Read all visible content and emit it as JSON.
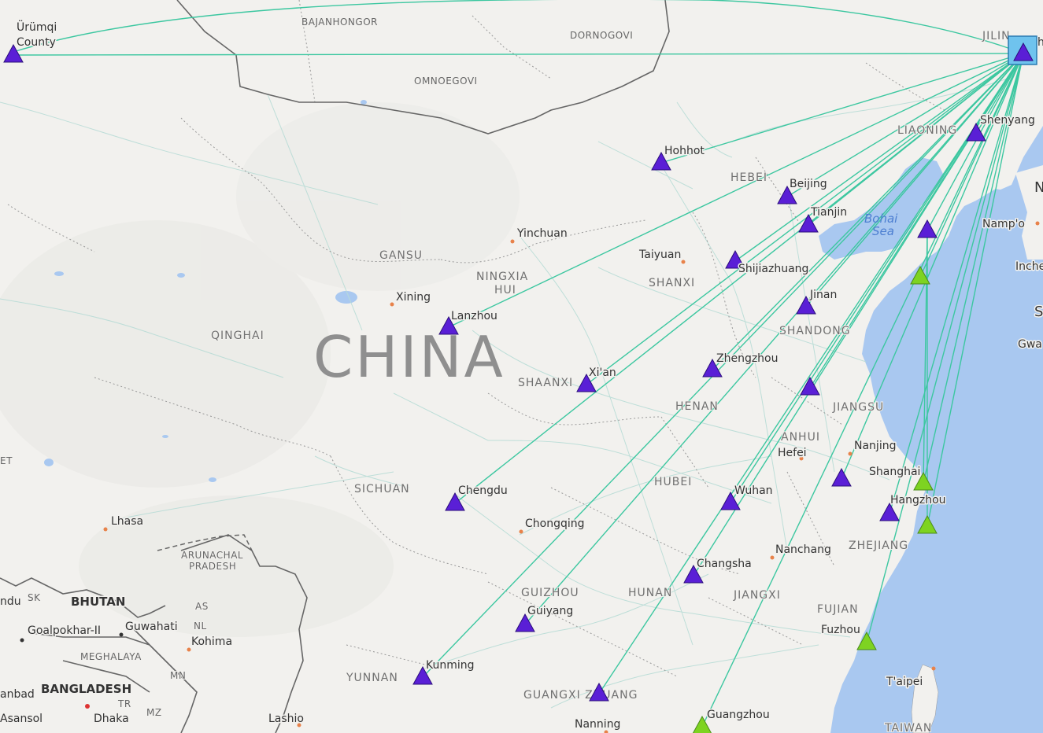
{
  "map": {
    "country_label": "CHINA",
    "colors": {
      "land": "#f2f1ee",
      "water": "#a9c8f0",
      "route_line": "#3cc7a0",
      "marker_purple": "#5a1fd6",
      "marker_green": "#7ed321",
      "hub_square": "#6fc3ee",
      "border": "#555555",
      "roads": "#b8dcd6"
    },
    "cities": [
      {
        "id": "urumqi",
        "name": "Ürümqi County"
      },
      {
        "id": "hohhot",
        "name": "Hohhot"
      },
      {
        "id": "beijing",
        "name": "Beijing"
      },
      {
        "id": "tianjin",
        "name": "Tianjin"
      },
      {
        "id": "shijiazhuang",
        "name": "Shijiazhuang"
      },
      {
        "id": "taiyuan",
        "name": "Taiyuan"
      },
      {
        "id": "yinchuan",
        "name": "Yinchuan"
      },
      {
        "id": "xining",
        "name": "Xining"
      },
      {
        "id": "lanzhou",
        "name": "Lanzhou"
      },
      {
        "id": "xian",
        "name": "Xi'an"
      },
      {
        "id": "zhengzhou",
        "name": "Zhengzhou"
      },
      {
        "id": "jinan",
        "name": "Jinan"
      },
      {
        "id": "shenyang",
        "name": "Shenyang"
      },
      {
        "id": "nanjing",
        "name": "Nanjing"
      },
      {
        "id": "hefei",
        "name": "Hefei"
      },
      {
        "id": "shanghai",
        "name": "Shanghai"
      },
      {
        "id": "hangzhou",
        "name": "Hangzhou"
      },
      {
        "id": "wuhan",
        "name": "Wuhan"
      },
      {
        "id": "chengdu",
        "name": "Chengdu"
      },
      {
        "id": "chongqing",
        "name": "Chongqing"
      },
      {
        "id": "changsha",
        "name": "Changsha"
      },
      {
        "id": "nanchang",
        "name": "Nanchang"
      },
      {
        "id": "guiyang",
        "name": "Guiyang"
      },
      {
        "id": "kunming",
        "name": "Kunming"
      },
      {
        "id": "nanning",
        "name": "Nanning"
      },
      {
        "id": "guangzhou",
        "name": "Guangzhou"
      },
      {
        "id": "fuzhou",
        "name": "Fuzhou"
      },
      {
        "id": "taipei",
        "name": "T'aipei"
      },
      {
        "id": "lhasa",
        "name": "Lhasa"
      },
      {
        "id": "lashio",
        "name": "Lashio"
      },
      {
        "id": "guwahati",
        "name": "Guwahati"
      },
      {
        "id": "goalpokhar",
        "name": "Goalpokhar-II"
      },
      {
        "id": "kohima",
        "name": "Kohima"
      },
      {
        "id": "dhaka",
        "name": "Dhaka"
      },
      {
        "id": "asansol",
        "name": "Asansol"
      },
      {
        "id": "nampo",
        "name": "Namp'o"
      },
      {
        "id": "inche",
        "name": "Inche"
      },
      {
        "id": "gwa",
        "name": "Gwa"
      },
      {
        "id": "anbad",
        "name": "anbad"
      },
      {
        "id": "ndu",
        "name": "ndu"
      }
    ],
    "regions": [
      "BAJANHONGOR",
      "DORNOGOVI",
      "OMNOEGOVI",
      "JILIN",
      "LIAONING",
      "HEBEI",
      "GANSU",
      "NINGXIA HUI",
      "SHANXI",
      "SHANDONG",
      "QINGHAI",
      "SHAANXI",
      "HENAN",
      "JIANGSU",
      "ANHUI",
      "SICHUAN",
      "HUBEI",
      "ZHEJIANG",
      "GUIZHOU",
      "HUNAN",
      "JIANGXI",
      "FUJIAN",
      "YUNNAN",
      "GUANGXI ZHUANG",
      "TAIWAN",
      "ARUNACHAL PRADESH",
      "MEGHALAYA",
      "SK",
      "AS",
      "NL",
      "MN",
      "TR",
      "MZ",
      "ET"
    ],
    "countries_small": [
      "BHUTAN",
      "BANGLADESH"
    ],
    "seas": [
      "Bohai Sea"
    ],
    "edge_letters": [
      "N",
      "S",
      "h"
    ],
    "markers": [
      {
        "city": "urumqi",
        "color": "purple"
      },
      {
        "city": "hohhot",
        "color": "purple"
      },
      {
        "city": "beijing",
        "color": "purple"
      },
      {
        "city": "tianjin",
        "color": "purple"
      },
      {
        "city": "shijiazhuang",
        "color": "purple"
      },
      {
        "city": "jinan",
        "color": "purple"
      },
      {
        "city": "shenyang",
        "color": "purple"
      },
      {
        "city": "dalian",
        "color": "purple"
      },
      {
        "city": "yantai",
        "color": "green"
      },
      {
        "city": "lanzhou",
        "color": "purple"
      },
      {
        "city": "xian",
        "color": "purple"
      },
      {
        "city": "zhengzhou",
        "color": "purple"
      },
      {
        "city": "xuzhou",
        "color": "purple"
      },
      {
        "city": "nanjing",
        "color": "purple"
      },
      {
        "city": "shanghai",
        "color": "green"
      },
      {
        "city": "hangzhou",
        "color": "purple"
      },
      {
        "city": "ningbo",
        "color": "green"
      },
      {
        "city": "wuhan",
        "color": "purple"
      },
      {
        "city": "chengdu",
        "color": "purple"
      },
      {
        "city": "changsha",
        "color": "purple"
      },
      {
        "city": "guiyang",
        "color": "purple"
      },
      {
        "city": "kunming",
        "color": "purple"
      },
      {
        "city": "nanning",
        "color": "purple"
      },
      {
        "city": "guangzhou",
        "color": "green"
      },
      {
        "city": "fuzhou",
        "color": "green"
      },
      {
        "city": "harbin_hub",
        "color": "purple"
      }
    ],
    "routes_from_hub": [
      "urumqi",
      "hohhot",
      "beijing",
      "tianjin",
      "shijiazhuang",
      "jinan",
      "shenyang",
      "dalian",
      "yantai",
      "lanzhou",
      "xian",
      "zhengzhou",
      "xuzhou",
      "nanjing",
      "shanghai",
      "hangzhou",
      "ningbo",
      "wuhan",
      "chengdu",
      "changsha",
      "guiyang",
      "kunming",
      "nanning",
      "guangzhou",
      "fuzhou"
    ]
  }
}
